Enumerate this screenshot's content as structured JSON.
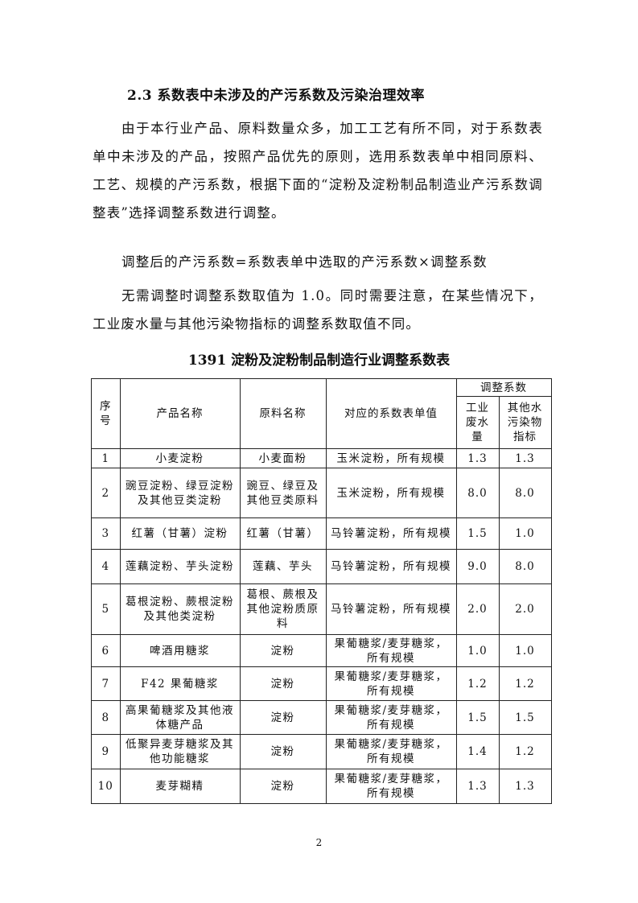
{
  "section_heading": "2.3 系数表中未涉及的产污系数及污染治理效率",
  "paragraphs": [
    "由于本行业产品、原料数量众多，加工工艺有所不同，对于系数表单中未涉及的产品，按照产品优先的原则，选用系数表单中相同原料、工艺、规模的产污系数，根据下面的“淀粉及淀粉制品制造业产污系数调整表”选择调整系数进行调整。",
    "调整后的产污系数=系数表单中选取的产污系数×调整系数",
    "无需调整时调整系数取值为 1.0。同时需要注意，在某些情况下，工业废水量与其他污染物指标的调整系数取值不同。"
  ],
  "table": {
    "caption": "1391 淀粉及淀粉制品制造行业调整系数表",
    "headers": {
      "seq": "序号",
      "product": "产品名称",
      "material": "原料名称",
      "reference": "对应的系数表单值",
      "coef_group": "调整系数",
      "wastewater": "工业废水量",
      "other": "其他水污染物指标"
    },
    "rows": [
      {
        "seq": "1",
        "product": "小麦淀粉",
        "material": "小麦面粉",
        "reference": "玉米淀粉，所有规模",
        "wastewater": "1.3",
        "other": "1.3"
      },
      {
        "seq": "2",
        "product": "豌豆淀粉、绿豆淀粉及其他豆类淀粉",
        "material": "豌豆、绿豆及其他豆类原料",
        "reference": "玉米淀粉，所有规模",
        "wastewater": "8.0",
        "other": "8.0"
      },
      {
        "seq": "3",
        "product": "红薯（甘薯）淀粉",
        "material": "红薯（甘薯）",
        "reference": "马铃薯淀粉，所有规模",
        "wastewater": "1.5",
        "other": "1.0"
      },
      {
        "seq": "4",
        "product": "莲藕淀粉、芋头淀粉",
        "material": "莲藕、芋头",
        "reference": "马铃薯淀粉，所有规模",
        "wastewater": "9.0",
        "other": "8.0"
      },
      {
        "seq": "5",
        "product": "葛根淀粉、蕨根淀粉及其他类淀粉",
        "material": "葛根、蕨根及其他淀粉质原料",
        "reference": "马铃薯淀粉，所有规模",
        "wastewater": "2.0",
        "other": "2.0"
      },
      {
        "seq": "6",
        "product": "啤酒用糖浆",
        "material": "淀粉",
        "reference": "果葡糖浆/麦芽糖浆，所有规模",
        "wastewater": "1.0",
        "other": "1.0"
      },
      {
        "seq": "7",
        "product": "F42 果葡糖浆",
        "material": "淀粉",
        "reference": "果葡糖浆/麦芽糖浆，所有规模",
        "wastewater": "1.2",
        "other": "1.2"
      },
      {
        "seq": "8",
        "product": "高果葡糖浆及其他液体糖产品",
        "material": "淀粉",
        "reference": "果葡糖浆/麦芽糖浆，所有规模",
        "wastewater": "1.5",
        "other": "1.5"
      },
      {
        "seq": "9",
        "product": "低聚异麦芽糖浆及其他功能糖浆",
        "material": "淀粉",
        "reference": "果葡糖浆/麦芽糖浆，所有规模",
        "wastewater": "1.4",
        "other": "1.2"
      },
      {
        "seq": "10",
        "product": "麦芽糊精",
        "material": "淀粉",
        "reference": "果葡糖浆/麦芽糖浆，所有规模",
        "wastewater": "1.3",
        "other": "1.3"
      }
    ]
  },
  "page_number": "2"
}
